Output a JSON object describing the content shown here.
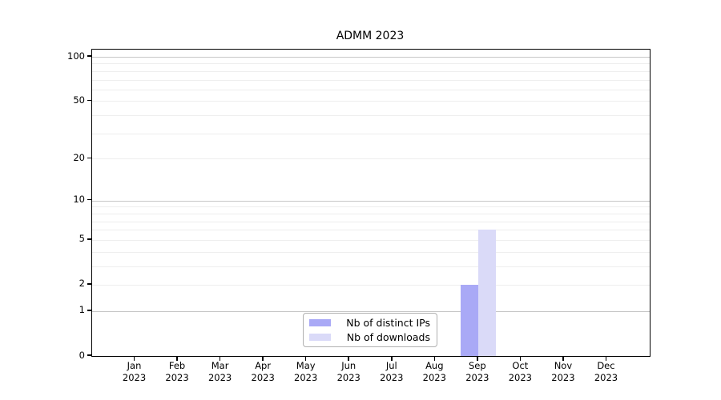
{
  "title": "ADMM 2023",
  "chart_data": {
    "type": "bar",
    "title": "ADMM 2023",
    "xlabel": "",
    "ylabel": "",
    "categories": [
      "Jan",
      "Feb",
      "Mar",
      "Apr",
      "May",
      "Jun",
      "Jul",
      "Aug",
      "Sep",
      "Oct",
      "Nov",
      "Dec"
    ],
    "x_year_label": "2023",
    "series": [
      {
        "name": "Nb of distinct IPs",
        "color": "#a9a9f6",
        "values": [
          0,
          0,
          0,
          0,
          0,
          0,
          0,
          0,
          2,
          0,
          0,
          0
        ]
      },
      {
        "name": "Nb of downloads",
        "color": "#dadaf8",
        "values": [
          0,
          0,
          0,
          0,
          0,
          0,
          0,
          0,
          6,
          0,
          0,
          0
        ]
      }
    ],
    "yscale": "log1p",
    "ylim": [
      0,
      100
    ],
    "yticks": [
      0,
      1,
      2,
      5,
      10,
      20,
      50,
      100
    ],
    "major_gridlines": [
      1,
      10,
      100
    ],
    "minor_gridlines": [
      2,
      3,
      4,
      5,
      6,
      7,
      8,
      9,
      20,
      30,
      40,
      50,
      60,
      70,
      80,
      90
    ],
    "grid": true,
    "legend_position": "lower center"
  },
  "legend": {
    "items": [
      {
        "label": "Nb of distinct IPs",
        "color": "#a9a9f6"
      },
      {
        "label": "Nb of downloads",
        "color": "#dadaf8"
      }
    ]
  },
  "colors": {
    "background": "#ffffff",
    "spine": "#000000",
    "major_grid": "#c6c6c6",
    "minor_grid": "#eeeeee",
    "legend_border": "#b0b0b0",
    "text": "#000000"
  }
}
